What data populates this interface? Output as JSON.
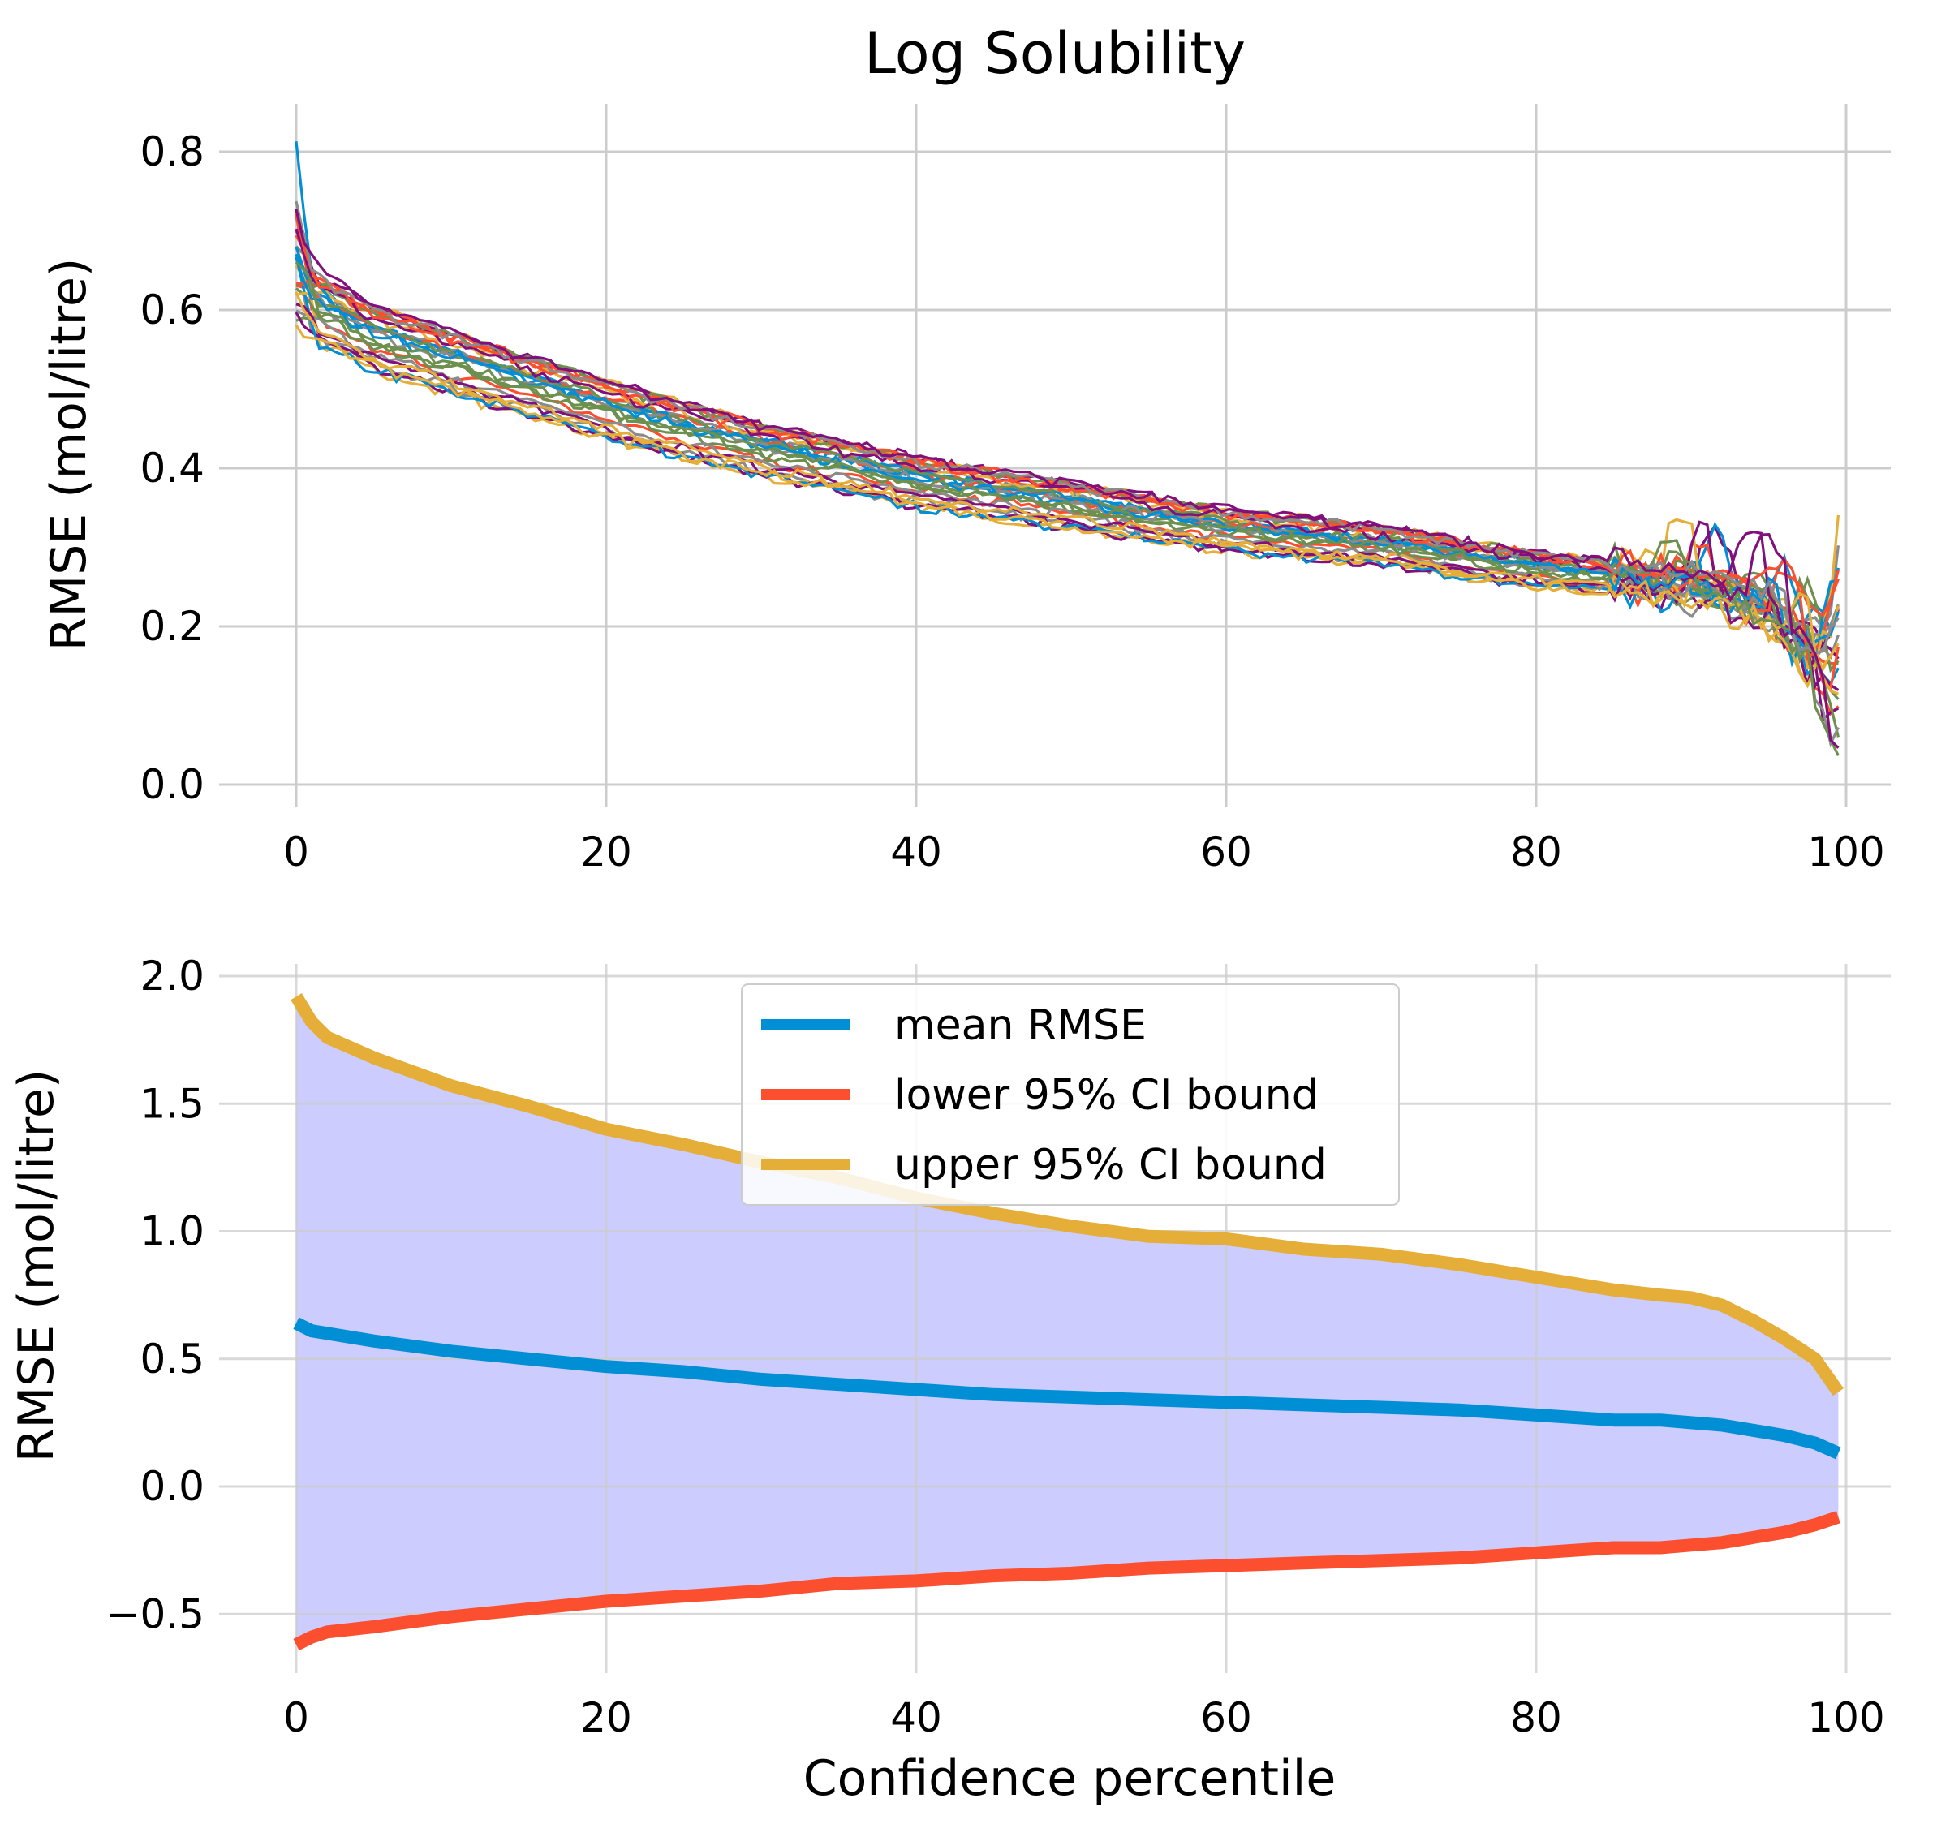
{
  "title": "Log Solubility",
  "colors": {
    "mean": "#008fd5",
    "lower": "#fc4f30",
    "upper": "#e5ae38",
    "fill": "#ccccff",
    "grid": "#cccccc",
    "palette": [
      "#008fd5",
      "#fc4f30",
      "#e5ae38",
      "#6d904f",
      "#8b8b8b",
      "#810f7c"
    ]
  },
  "chart_data": [
    {
      "type": "line",
      "title": "Log Solubility",
      "xlabel": "",
      "ylabel": "RMSE (mol/litre)",
      "xlim": [
        -5,
        105
      ],
      "ylim": [
        -0.02,
        0.85
      ],
      "xticks": [
        0,
        20,
        40,
        60,
        80,
        100
      ],
      "xtick_labels": [
        "0",
        "20",
        "40",
        "60",
        "80",
        "100"
      ],
      "yticks": [
        0.0,
        0.2,
        0.4,
        0.6,
        0.8
      ],
      "ytick_labels": [
        "0.0",
        "0.2",
        "0.4",
        "0.6",
        "0.8"
      ],
      "grid": true,
      "series_count": 30,
      "description_profile": {
        "x": [
          0,
          1,
          5,
          10,
          20,
          30,
          40,
          50,
          60,
          70,
          80,
          90,
          95,
          98,
          99.5
        ],
        "typical_y": [
          0.62,
          0.6,
          0.56,
          0.53,
          0.47,
          0.42,
          0.38,
          0.35,
          0.32,
          0.3,
          0.27,
          0.25,
          0.22,
          0.15,
          0.06
        ],
        "y_start_range": [
          0.53,
          0.83
        ],
        "y_end_range": [
          0.0,
          0.32
        ]
      }
    },
    {
      "type": "area",
      "title": "",
      "xlabel": "Confidence percentile",
      "ylabel": "RMSE (mol/litre)",
      "xlim": [
        -5,
        105
      ],
      "ylim": [
        -0.72,
        2.08
      ],
      "xticks": [
        0,
        20,
        40,
        60,
        80,
        100
      ],
      "xtick_labels": [
        "0",
        "20",
        "40",
        "60",
        "80",
        "100"
      ],
      "yticks": [
        -0.5,
        0.0,
        0.5,
        1.0,
        1.5,
        2.0
      ],
      "ytick_labels": [
        "−0.5",
        "0.0",
        "0.5",
        "1.0",
        "1.5",
        "2.0"
      ],
      "grid": true,
      "legend": "upper-center",
      "x": [
        0,
        1,
        2,
        5,
        10,
        15,
        20,
        25,
        30,
        35,
        40,
        45,
        50,
        55,
        60,
        65,
        70,
        75,
        80,
        85,
        88,
        90,
        92,
        94,
        96,
        98,
        99.5
      ],
      "series": [
        {
          "name": "mean RMSE",
          "values": [
            0.64,
            0.61,
            0.6,
            0.57,
            0.53,
            0.5,
            0.47,
            0.45,
            0.42,
            0.4,
            0.38,
            0.36,
            0.35,
            0.34,
            0.33,
            0.32,
            0.31,
            0.3,
            0.28,
            0.26,
            0.26,
            0.25,
            0.24,
            0.22,
            0.2,
            0.17,
            0.13
          ]
        },
        {
          "name": "lower 95% CI bound",
          "values": [
            -0.62,
            -0.59,
            -0.57,
            -0.55,
            -0.51,
            -0.48,
            -0.45,
            -0.43,
            -0.41,
            -0.38,
            -0.37,
            -0.35,
            -0.34,
            -0.32,
            -0.31,
            -0.3,
            -0.29,
            -0.28,
            -0.26,
            -0.24,
            -0.24,
            -0.23,
            -0.22,
            -0.2,
            -0.18,
            -0.15,
            -0.12
          ]
        },
        {
          "name": "upper 95% CI bound",
          "values": [
            1.92,
            1.82,
            1.76,
            1.68,
            1.57,
            1.49,
            1.4,
            1.34,
            1.27,
            1.21,
            1.13,
            1.07,
            1.02,
            0.98,
            0.97,
            0.93,
            0.91,
            0.87,
            0.82,
            0.77,
            0.75,
            0.74,
            0.71,
            0.65,
            0.58,
            0.5,
            0.37
          ]
        }
      ]
    }
  ]
}
